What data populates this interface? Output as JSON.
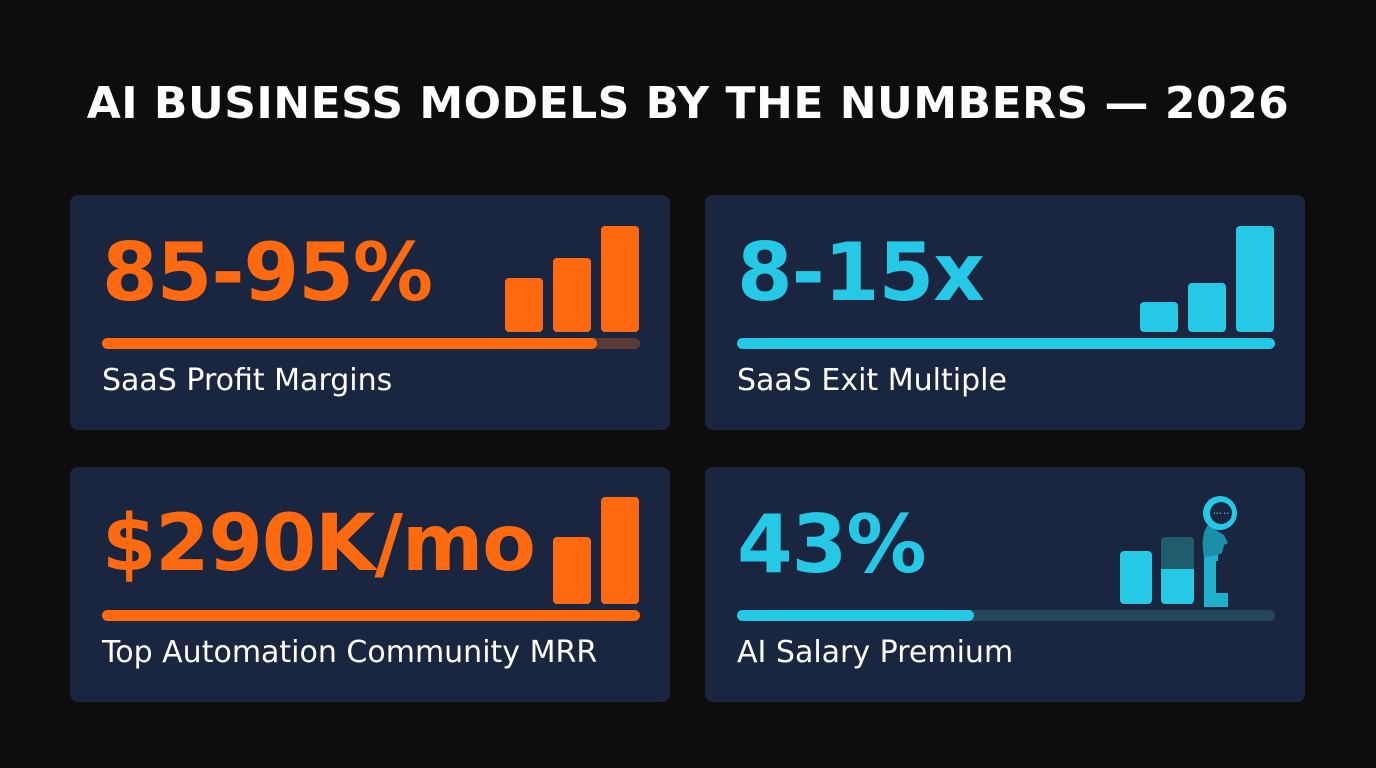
{
  "title": "AI BUSINESS MODELS BY THE NUMBERS — 2026",
  "colors": {
    "background": "#0d0d0e",
    "card": "#1a2540",
    "orange": "#ff6a10",
    "cyan": "#25c9e6"
  },
  "cards": [
    {
      "value": "85-95%",
      "label": "SaaS Profit Margins",
      "accent": "orange",
      "progress_percent": 92,
      "icon": "bar-chart-icon"
    },
    {
      "value": "8-15x",
      "label": "SaaS Exit Multiple",
      "accent": "cyan",
      "progress_percent": 100,
      "icon": "bar-chart-icon"
    },
    {
      "value": "$290K/mo",
      "label": "Top Automation Community MRR",
      "accent": "orange",
      "progress_percent": 100,
      "icon": "bar-chart-icon"
    },
    {
      "value": "43%",
      "label": "AI Salary Premium",
      "accent": "cyan",
      "progress_percent": 44,
      "icon": "ai-head-bar-chart-icon"
    }
  ]
}
